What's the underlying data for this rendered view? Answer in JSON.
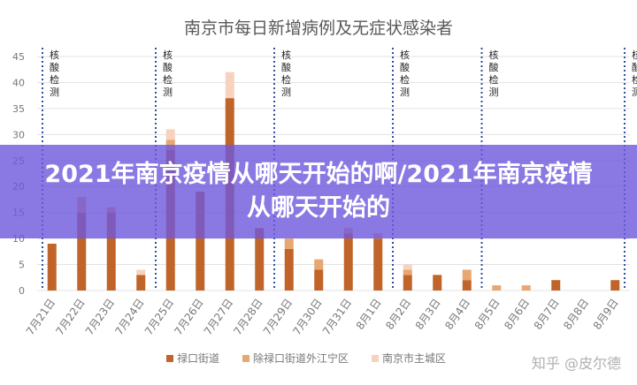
{
  "banner": {
    "title": "2021年南京疫情从哪天开始的啊/2021年南京疫情从哪天开始的"
  },
  "watermark": "知乎 @皮尔德",
  "chart_data": {
    "type": "bar",
    "stacked": true,
    "title": "南京市每日新增病例及无症状感染者",
    "categories": [
      "7月21日",
      "7月22日",
      "7月23日",
      "7月24日",
      "7月25日",
      "7月26日",
      "7月27日",
      "7月28日",
      "7月29日",
      "7月30日",
      "7月31日",
      "8月1日",
      "8月2日",
      "8月3日",
      "8月4日",
      "8月5日",
      "8月6日",
      "8月7日",
      "8月8日",
      "8月9日"
    ],
    "series": [
      {
        "name": "禄口街道",
        "color": "#c0642a",
        "values": [
          9,
          15,
          15,
          3,
          27,
          19,
          37,
          12,
          8,
          4,
          11,
          10,
          3,
          3,
          2,
          0,
          0,
          2,
          0,
          2
        ]
      },
      {
        "name": "除禄口街道外江宁区",
        "color": "#e8a672",
        "values": [
          0,
          3,
          1,
          0,
          2,
          0,
          0,
          0,
          2,
          2,
          1,
          1,
          1,
          0,
          2,
          1,
          1,
          0,
          0,
          0
        ]
      },
      {
        "name": "南京市主城区",
        "color": "#f7d3bf",
        "values": [
          0,
          0,
          0,
          1,
          2,
          0,
          5,
          0,
          0,
          0,
          0,
          0,
          1,
          0,
          0,
          0,
          0,
          0,
          0,
          0
        ]
      }
    ],
    "ylim": [
      0,
      45
    ],
    "yticks": [
      0,
      5,
      10,
      15,
      20,
      25,
      30,
      35,
      40,
      45
    ],
    "annotations": [
      {
        "text": "核酸检测",
        "after_category": "7月21日",
        "marker": "boundary-left"
      },
      {
        "text": "核酸检测",
        "after_category": "7月24日",
        "marker": "between-7月24日-7月25日"
      },
      {
        "text": "核酸检测",
        "after_category": "7月28日",
        "marker": "between-7月28日-7月29日"
      },
      {
        "text": "核酸检测",
        "after_category": "8月1日",
        "marker": "between-8月1日-8月2日"
      },
      {
        "text": "核酸检测",
        "after_category": "8月4日",
        "marker": "between-8月4日-8月5日"
      },
      {
        "text": "核酸检测",
        "after_category": "8月9日",
        "marker": "boundary-right"
      }
    ],
    "grid": true,
    "legend_position": "bottom"
  },
  "colors": {
    "line": "#2f4fa0",
    "grid": "#e3e3e3",
    "axis_text": "#777777",
    "title": "#595959"
  }
}
